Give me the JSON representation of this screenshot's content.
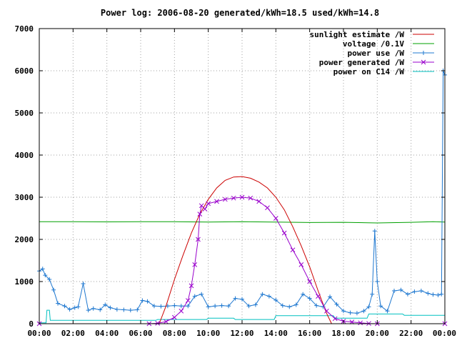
{
  "chart_data": {
    "type": "line",
    "title": "Power log: 2006-08-20 generated/kWh=18.5 used/kWh=14.8",
    "xlabel": "",
    "ylabel": "",
    "xlim": [
      0,
      24
    ],
    "ylim": [
      0,
      7000
    ],
    "x_ticks": [
      "00:00",
      "02:00",
      "04:00",
      "06:00",
      "08:00",
      "10:00",
      "12:00",
      "14:00",
      "16:00",
      "18:00",
      "20:00",
      "22:00",
      "00:00"
    ],
    "y_ticks": [
      "0",
      "1000",
      "2000",
      "3000",
      "4000",
      "5000",
      "6000",
      "7000"
    ],
    "grid": true,
    "legend_position": "top-right",
    "series": [
      {
        "name": "sunlight estimate /W",
        "color": "#cc0000",
        "marker": "none",
        "x": [
          7.1,
          7.5,
          8,
          8.5,
          9,
          9.5,
          10,
          10.5,
          11,
          11.5,
          12,
          12.5,
          13,
          13.5,
          14,
          14.5,
          15,
          15.5,
          16,
          16.5,
          17,
          17.3
        ],
        "y": [
          0,
          420,
          1050,
          1620,
          2150,
          2600,
          2950,
          3220,
          3400,
          3480,
          3490,
          3450,
          3360,
          3220,
          3000,
          2700,
          2300,
          1850,
          1350,
          780,
          250,
          0
        ]
      },
      {
        "name": "voltage /0.1V",
        "color": "#00a000",
        "marker": "none",
        "x": [
          0,
          2,
          4,
          6,
          8,
          10,
          12,
          14,
          16,
          18,
          20,
          22,
          23.3,
          24
        ],
        "y": [
          2420,
          2420,
          2415,
          2420,
          2420,
          2410,
          2420,
          2410,
          2400,
          2405,
          2390,
          2405,
          2420,
          2410
        ]
      },
      {
        "name": "power use /W",
        "color": "#1f78d0",
        "marker": "plus",
        "x": [
          0,
          0.2,
          0.35,
          0.6,
          0.85,
          1.1,
          1.5,
          1.8,
          2.1,
          2.3,
          2.6,
          2.9,
          3.2,
          3.6,
          3.9,
          4.2,
          4.6,
          5.0,
          5.4,
          5.8,
          6.1,
          6.4,
          6.8,
          7.2,
          7.6,
          8.0,
          8.4,
          8.8,
          9.2,
          9.6,
          10.0,
          10.4,
          10.8,
          11.2,
          11.6,
          12.0,
          12.4,
          12.8,
          13.2,
          13.6,
          14.0,
          14.4,
          14.8,
          15.2,
          15.6,
          16.0,
          16.4,
          16.8,
          17.2,
          17.6,
          18.0,
          18.4,
          18.8,
          19.2,
          19.5,
          19.7,
          19.85,
          20.0,
          20.2,
          20.6,
          21.0,
          21.4,
          21.8,
          22.2,
          22.6,
          23.0,
          23.3,
          23.6,
          23.8,
          23.9,
          24.0
        ],
        "y": [
          1250,
          1300,
          1150,
          1050,
          800,
          480,
          420,
          340,
          380,
          400,
          950,
          320,
          360,
          330,
          450,
          380,
          340,
          330,
          320,
          330,
          550,
          530,
          420,
          410,
          420,
          430,
          420,
          420,
          650,
          700,
          400,
          420,
          430,
          420,
          600,
          580,
          420,
          450,
          700,
          650,
          560,
          430,
          400,
          450,
          700,
          600,
          430,
          400,
          640,
          460,
          300,
          260,
          250,
          300,
          400,
          700,
          2200,
          1000,
          420,
          300,
          780,
          800,
          700,
          760,
          780,
          720,
          690,
          680,
          700,
          6000,
          5900
        ]
      },
      {
        "name": "power generated /W",
        "color": "#9900cc",
        "marker": "cross",
        "x": [
          0,
          6.5,
          7.0,
          7.5,
          8.0,
          8.4,
          8.8,
          9.0,
          9.2,
          9.4,
          9.5,
          9.6,
          9.8,
          10.0,
          10.5,
          11.0,
          11.5,
          12.0,
          12.5,
          13.0,
          13.5,
          14.0,
          14.5,
          15.0,
          15.5,
          16.0,
          16.5,
          17.0,
          17.5,
          18.0,
          18.5,
          19.0,
          19.5,
          20.0,
          24.0
        ],
        "y": [
          0,
          0,
          10,
          50,
          150,
          300,
          550,
          900,
          1400,
          2000,
          2600,
          2800,
          2720,
          2850,
          2900,
          2950,
          2980,
          3000,
          2980,
          2900,
          2750,
          2500,
          2150,
          1750,
          1400,
          1000,
          650,
          300,
          120,
          60,
          40,
          20,
          5,
          0,
          0
        ]
      },
      {
        "name": "power on C14 /W",
        "color": "#00c0c0",
        "marker": "none",
        "x": [
          0,
          0.4,
          0.45,
          0.6,
          0.65,
          6.9,
          7.0,
          9.9,
          10.0,
          11.5,
          11.6,
          13.9,
          14.0,
          17.4,
          17.5,
          19.4,
          19.5,
          21.5,
          21.6,
          23.9,
          24.0
        ],
        "y": [
          20,
          20,
          320,
          320,
          80,
          80,
          100,
          100,
          130,
          130,
          100,
          100,
          190,
          190,
          130,
          130,
          230,
          230,
          200,
          200,
          200
        ]
      }
    ]
  }
}
